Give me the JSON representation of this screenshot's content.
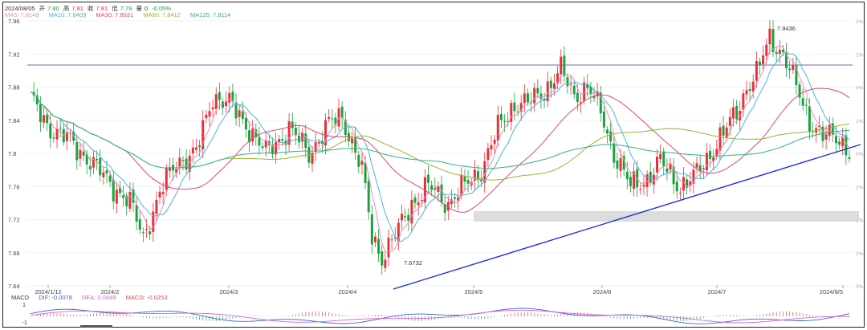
{
  "header": {
    "date": "2024/08/05",
    "open_label": "开",
    "open": "7.80",
    "high_label": "高",
    "high": "7.81",
    "low_label": "低",
    "low": "7.79",
    "close_label": "收",
    "close": "7.81",
    "volume_label": "量",
    "volume": "0",
    "change": "-0.05%"
  },
  "ma_labels": [
    {
      "text": "MA5: 7.8149",
      "color": "#e98fb3"
    },
    {
      "text": "MA10: 7.8409",
      "color": "#4ab3e0"
    },
    {
      "text": "MA30: 7.8531",
      "color": "#d84a6e"
    },
    {
      "text": "MA60: 7.8412",
      "color": "#9cb332"
    },
    {
      "text": "MA125: 7.8114",
      "color": "#2db38a"
    }
  ],
  "macd_labels": {
    "title": "MACD",
    "dif": "DIF: -0.0078",
    "dif_color": "#3a66d8",
    "dea": "DEA: 0.0048",
    "dea_color": "#d860d8",
    "macd": "MACD: -0.0253",
    "macd_color": "#d84a4a"
  },
  "chart_data": {
    "type": "candlestick",
    "y_ticks": [
      "7.96",
      "7.92",
      "7.88",
      "7.84",
      "7.8",
      "7.76",
      "7.72",
      "7.68",
      "7.64"
    ],
    "y_range": [
      7.64,
      7.96
    ],
    "right_pct_ticks": [
      "1%",
      "1%",
      "0%",
      "1%",
      "0%",
      "1%",
      "2%",
      "2%",
      "3%"
    ],
    "x_ticks": [
      "2024/1/12",
      "2024/2",
      "2024/3",
      "2024/4",
      "2024/5",
      "2024/6",
      "2024/7",
      "2024/8/5"
    ],
    "annotations": [
      {
        "text": "7.9436",
        "value": 7.9436
      },
      {
        "text": "7.6732",
        "value": 7.6732
      }
    ],
    "macd_ticks": [
      "1",
      "-1"
    ],
    "colors": {
      "up": "#e8303a",
      "down": "#1aa13d"
    }
  }
}
